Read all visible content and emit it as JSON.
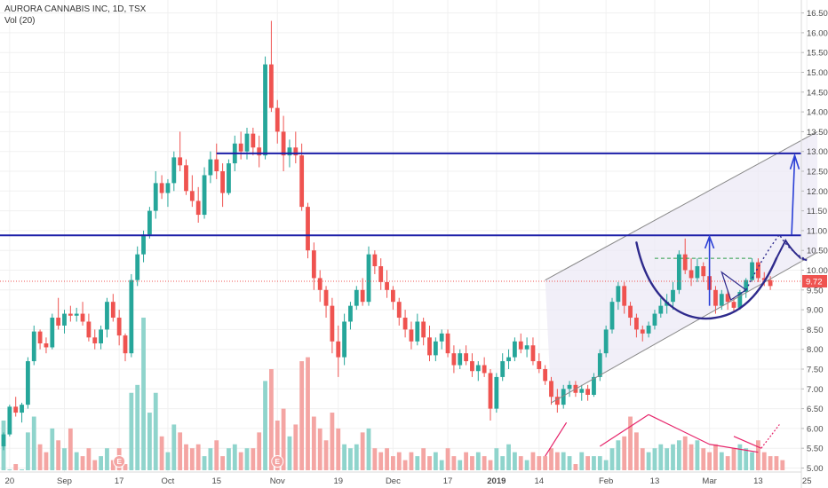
{
  "header": {
    "symbol_line": "AURORA CANNABIS INC, 1D, TSX",
    "volume_line": "Vol (20)"
  },
  "colors": {
    "up": "#26a69a",
    "down": "#ef5350",
    "vol_up": "#8fd4cc",
    "vol_down": "#f4a5a3",
    "resistance": "#1c1fa8",
    "channel": "#888888",
    "channel_fill": "#ece9f6",
    "cup": "#2e2a8c",
    "annot": "#e6246a",
    "current_price": "#ef5350"
  },
  "chart_data": {
    "type": "candlestick",
    "y_axis": {
      "range": [
        4.95,
        16.6
      ],
      "ticks": [
        "16.50",
        "16.00",
        "15.50",
        "15.00",
        "14.50",
        "14.00",
        "13.50",
        "13.00",
        "12.50",
        "12.00",
        "11.50",
        "11.00",
        "10.50",
        "10.00",
        "9.50",
        "9.00",
        "8.50",
        "8.00",
        "7.50",
        "7.00",
        "6.50",
        "6.00",
        "5.50",
        "5.00"
      ]
    },
    "x_axis": {
      "labels": [
        {
          "text": "20",
          "i": 1
        },
        {
          "text": "Sep",
          "i": 10
        },
        {
          "text": "17",
          "i": 19
        },
        {
          "text": "Oct",
          "i": 27
        },
        {
          "text": "15",
          "i": 35
        },
        {
          "text": "Nov",
          "i": 45
        },
        {
          "text": "19",
          "i": 55
        },
        {
          "text": "Dec",
          "i": 64
        },
        {
          "text": "17",
          "i": 73
        },
        {
          "text": "2019",
          "i": 81
        },
        {
          "text": "14",
          "i": 88
        },
        {
          "text": "Feb",
          "i": 99
        },
        {
          "text": "13",
          "i": 107
        },
        {
          "text": "Mar",
          "i": 116
        },
        {
          "text": "13",
          "i": 124
        },
        {
          "text": "25",
          "i": 132
        }
      ]
    },
    "current_price": {
      "label": "9.72",
      "value": 9.72
    },
    "resistance_levels": [
      10.88,
      12.95
    ],
    "candles": [
      [
        5.55,
        5.9,
        5.45,
        5.85
      ],
      [
        5.85,
        6.6,
        5.8,
        6.55
      ],
      [
        6.55,
        6.8,
        6.3,
        6.4
      ],
      [
        6.4,
        6.65,
        6.15,
        6.6
      ],
      [
        6.6,
        7.8,
        6.5,
        7.7
      ],
      [
        7.7,
        8.6,
        7.6,
        8.45
      ],
      [
        8.45,
        8.5,
        8.0,
        8.15
      ],
      [
        8.15,
        8.3,
        7.9,
        8.05
      ],
      [
        8.05,
        8.9,
        8.0,
        8.8
      ],
      [
        8.8,
        9.3,
        8.5,
        8.6
      ],
      [
        8.6,
        9.0,
        8.4,
        8.9
      ],
      [
        8.9,
        9.1,
        8.7,
        8.85
      ],
      [
        8.85,
        9.05,
        8.7,
        8.9
      ],
      [
        8.9,
        9.2,
        8.6,
        8.7
      ],
      [
        8.7,
        8.9,
        8.2,
        8.3
      ],
      [
        8.3,
        8.5,
        8.0,
        8.15
      ],
      [
        8.15,
        8.6,
        8.0,
        8.5
      ],
      [
        8.5,
        9.3,
        8.3,
        9.2
      ],
      [
        9.2,
        9.4,
        8.7,
        8.8
      ],
      [
        8.8,
        9.0,
        8.1,
        8.35
      ],
      [
        8.35,
        8.4,
        7.7,
        7.9
      ],
      [
        7.9,
        9.9,
        7.8,
        9.75
      ],
      [
        9.75,
        10.6,
        9.6,
        10.4
      ],
      [
        10.4,
        11.0,
        10.2,
        10.9
      ],
      [
        10.9,
        11.6,
        10.8,
        11.5
      ],
      [
        11.5,
        12.5,
        11.3,
        12.2
      ],
      [
        12.2,
        12.4,
        11.8,
        11.95
      ],
      [
        11.95,
        12.3,
        11.6,
        12.2
      ],
      [
        12.2,
        13.0,
        12.0,
        12.85
      ],
      [
        12.85,
        13.5,
        12.5,
        12.65
      ],
      [
        12.65,
        12.8,
        11.9,
        12.0
      ],
      [
        12.0,
        12.4,
        11.6,
        11.75
      ],
      [
        11.75,
        12.1,
        11.2,
        11.4
      ],
      [
        11.4,
        12.6,
        11.3,
        12.4
      ],
      [
        12.4,
        13.0,
        12.2,
        12.8
      ],
      [
        12.8,
        13.2,
        12.3,
        12.5
      ],
      [
        12.5,
        12.7,
        11.6,
        11.95
      ],
      [
        11.95,
        12.8,
        11.9,
        12.7
      ],
      [
        12.7,
        13.4,
        12.5,
        13.2
      ],
      [
        13.2,
        13.5,
        12.8,
        13.0
      ],
      [
        13.0,
        13.6,
        12.8,
        13.45
      ],
      [
        13.45,
        13.6,
        12.9,
        13.1
      ],
      [
        13.1,
        13.4,
        12.6,
        12.9
      ],
      [
        12.9,
        15.4,
        12.8,
        15.2
      ],
      [
        15.2,
        16.3,
        14.0,
        14.1
      ],
      [
        14.1,
        14.3,
        13.2,
        13.5
      ],
      [
        13.5,
        13.9,
        12.5,
        12.9
      ],
      [
        12.9,
        13.3,
        12.6,
        13.1
      ],
      [
        13.1,
        13.5,
        12.7,
        12.9
      ],
      [
        12.9,
        13.2,
        11.5,
        11.6
      ],
      [
        11.6,
        11.7,
        10.3,
        10.5
      ],
      [
        10.5,
        10.7,
        9.5,
        9.8
      ],
      [
        9.8,
        10.0,
        9.2,
        9.5
      ],
      [
        9.5,
        9.6,
        8.8,
        9.1
      ],
      [
        9.1,
        9.3,
        7.9,
        8.2
      ],
      [
        8.2,
        8.6,
        7.3,
        7.8
      ],
      [
        7.8,
        8.9,
        7.6,
        8.7
      ],
      [
        8.7,
        9.2,
        8.5,
        9.1
      ],
      [
        9.1,
        9.6,
        9.0,
        9.5
      ],
      [
        9.5,
        9.8,
        9.1,
        9.2
      ],
      [
        9.2,
        10.6,
        9.1,
        10.4
      ],
      [
        10.4,
        10.5,
        9.9,
        10.1
      ],
      [
        10.1,
        10.3,
        9.5,
        9.7
      ],
      [
        9.7,
        10.0,
        9.3,
        9.5
      ],
      [
        9.5,
        9.6,
        9.0,
        9.2
      ],
      [
        9.2,
        9.3,
        8.6,
        8.8
      ],
      [
        8.8,
        9.0,
        8.3,
        8.5
      ],
      [
        8.5,
        8.7,
        8.0,
        8.2
      ],
      [
        8.2,
        8.9,
        8.1,
        8.7
      ],
      [
        8.7,
        8.8,
        8.1,
        8.3
      ],
      [
        8.3,
        8.6,
        7.7,
        7.85
      ],
      [
        7.85,
        8.3,
        7.7,
        8.2
      ],
      [
        8.2,
        8.5,
        8.0,
        8.4
      ],
      [
        8.4,
        8.5,
        7.8,
        7.9
      ],
      [
        7.9,
        8.1,
        7.4,
        7.6
      ],
      [
        7.6,
        8.0,
        7.5,
        7.9
      ],
      [
        7.9,
        8.1,
        7.6,
        7.7
      ],
      [
        7.7,
        7.9,
        7.3,
        7.45
      ],
      [
        7.45,
        7.7,
        7.2,
        7.6
      ],
      [
        7.6,
        7.8,
        7.3,
        7.4
      ],
      [
        7.4,
        7.5,
        6.2,
        6.5
      ],
      [
        6.5,
        7.4,
        6.4,
        7.3
      ],
      [
        7.3,
        7.9,
        7.2,
        7.7
      ],
      [
        7.7,
        8.0,
        7.5,
        7.8
      ],
      [
        7.8,
        8.3,
        7.7,
        8.2
      ],
      [
        8.2,
        8.4,
        7.9,
        8.0
      ],
      [
        8.0,
        8.3,
        7.8,
        8.1
      ],
      [
        8.1,
        8.3,
        7.6,
        7.7
      ],
      [
        7.7,
        7.9,
        7.4,
        7.5
      ],
      [
        7.5,
        7.6,
        7.1,
        7.2
      ],
      [
        7.2,
        7.3,
        6.6,
        6.8
      ],
      [
        6.8,
        7.0,
        6.4,
        6.6
      ],
      [
        6.6,
        7.1,
        6.5,
        7.0
      ],
      [
        7.0,
        7.2,
        6.8,
        7.1
      ],
      [
        7.1,
        7.2,
        6.8,
        6.9
      ],
      [
        6.9,
        7.1,
        6.7,
        7.0
      ],
      [
        7.0,
        7.1,
        6.7,
        6.85
      ],
      [
        6.85,
        7.4,
        6.8,
        7.3
      ],
      [
        7.3,
        8.0,
        7.2,
        7.9
      ],
      [
        7.9,
        8.6,
        7.8,
        8.5
      ],
      [
        8.5,
        9.3,
        8.4,
        9.2
      ],
      [
        9.2,
        9.7,
        9.0,
        9.6
      ],
      [
        9.6,
        9.7,
        8.9,
        9.1
      ],
      [
        9.1,
        9.2,
        8.6,
        8.8
      ],
      [
        8.8,
        8.9,
        8.3,
        8.5
      ],
      [
        8.5,
        8.6,
        8.2,
        8.4
      ],
      [
        8.4,
        8.7,
        8.3,
        8.6
      ],
      [
        8.6,
        9.0,
        8.5,
        8.9
      ],
      [
        8.9,
        9.3,
        8.8,
        9.1
      ],
      [
        9.1,
        9.4,
        8.9,
        9.2
      ],
      [
        9.2,
        9.7,
        9.0,
        9.5
      ],
      [
        9.5,
        10.5,
        9.4,
        10.4
      ],
      [
        10.4,
        10.8,
        9.9,
        10.0
      ],
      [
        10.0,
        10.3,
        9.6,
        9.8
      ],
      [
        9.8,
        10.3,
        9.7,
        10.1
      ],
      [
        10.1,
        10.2,
        9.7,
        9.85
      ],
      [
        9.85,
        10.1,
        9.4,
        9.5
      ],
      [
        9.5,
        9.6,
        8.9,
        9.1
      ],
      [
        9.1,
        9.5,
        9.0,
        9.4
      ],
      [
        9.4,
        9.5,
        9.0,
        9.2
      ],
      [
        9.2,
        9.3,
        8.95,
        9.05
      ],
      [
        9.05,
        9.5,
        9.0,
        9.45
      ],
      [
        9.45,
        9.8,
        9.3,
        9.75
      ],
      [
        9.75,
        10.3,
        9.7,
        10.2
      ],
      [
        10.2,
        10.3,
        9.7,
        9.8
      ],
      [
        9.8,
        9.95,
        9.6,
        9.75
      ],
      [
        9.75,
        9.85,
        9.5,
        9.6
      ]
    ],
    "volumes": [
      6.2,
      4.6,
      5.1,
      4.8,
      5.9,
      6.3,
      5.6,
      5.4,
      6.0,
      5.7,
      5.5,
      6.0,
      5.4,
      5.3,
      5.5,
      5.2,
      5.3,
      5.5,
      5.2,
      5.5,
      5.1,
      6.9,
      7.1,
      8.8,
      6.4,
      6.9,
      5.8,
      5.4,
      6.1,
      5.9,
      5.6,
      5.5,
      5.6,
      5.3,
      5.5,
      5.7,
      5.3,
      5.5,
      5.6,
      5.4,
      5.5,
      5.5,
      5.9,
      7.2,
      7.5,
      6.2,
      6.5,
      5.8,
      6.1,
      7.7,
      7.8,
      6.3,
      6.0,
      5.7,
      6.4,
      6.0,
      5.6,
      5.5,
      5.6,
      5.9,
      6.0,
      5.5,
      5.4,
      5.5,
      5.3,
      5.4,
      5.2,
      5.4,
      5.3,
      5.5,
      5.3,
      5.4,
      5.2,
      5.5,
      5.3,
      5.2,
      5.4,
      5.3,
      5.4,
      5.3,
      5.2,
      5.5,
      5.3,
      5.6,
      5.4,
      5.3,
      5.2,
      5.4,
      5.3,
      5.3,
      5.5,
      5.4,
      5.4,
      5.3,
      5.1,
      5.4,
      5.3,
      5.3,
      5.3,
      5.2,
      5.5,
      5.7,
      5.8,
      6.3,
      5.9,
      5.5,
      5.4,
      5.5,
      5.6,
      5.5,
      5.6,
      5.7,
      5.8,
      5.6,
      5.7,
      5.5,
      5.4,
      5.6,
      5.4,
      5.3,
      5.5,
      5.6,
      5.5,
      5.4,
      5.7,
      5.4,
      5.3,
      5.3,
      5.2
    ],
    "earnings_markers": [
      {
        "label": "E",
        "i": 19
      },
      {
        "label": "E",
        "i": 45
      }
    ]
  }
}
